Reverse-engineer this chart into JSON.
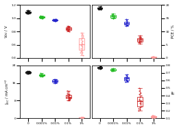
{
  "x_labels": [
    "0",
    "0.001%",
    "0.01%",
    "0.1%",
    "1%"
  ],
  "x_positions": [
    0,
    1,
    2,
    3,
    4
  ],
  "colors": [
    "#111111",
    "#22bb22",
    "#2222cc",
    "#cc2222",
    "#ff9999"
  ],
  "voc_data": [
    [
      1.07,
      1.08,
      1.09,
      1.1,
      1.11,
      1.12,
      1.08,
      1.09,
      1.1,
      1.11,
      1.09,
      1.1,
      1.08,
      1.09,
      1.1,
      1.11,
      1.08,
      1.09,
      1.1,
      1.07,
      1.08,
      1.09,
      1.1,
      1.11,
      1.12
    ],
    [
      1.0,
      1.01,
      1.02,
      1.03,
      1.04,
      1.02,
      1.03,
      1.01,
      1.02,
      1.03,
      1.01,
      1.02,
      1.03,
      1.0
    ],
    [
      0.95,
      0.96,
      0.97,
      0.98,
      0.99,
      0.97,
      0.98,
      0.96,
      0.97,
      0.98,
      0.96,
      0.97,
      0.95,
      0.96
    ],
    [
      0.8,
      0.82,
      0.84,
      0.86,
      0.88,
      0.83,
      0.85,
      0.87,
      0.82,
      0.84,
      0.86,
      0.81,
      0.83,
      0.85,
      0.87,
      0.82,
      0.84,
      0.86,
      0.81,
      0.83
    ],
    [
      0.44,
      0.48,
      0.52,
      0.56,
      0.6,
      0.64,
      0.68,
      0.72,
      0.76,
      0.5,
      0.54,
      0.58,
      0.62,
      0.66,
      0.7,
      0.74,
      0.46,
      0.5,
      0.54,
      0.58,
      0.62,
      0.66,
      0.7,
      0.74,
      0.78,
      0.48
    ]
  ],
  "voc_ylim": [
    0.4,
    1.2
  ],
  "voc_yticks": [
    0.4,
    0.6,
    0.8,
    1.0,
    1.2
  ],
  "voc_ylabel": "V$_{OC}$ / V",
  "pce_data": [
    [
      18.2,
      18.5,
      18.8,
      19.0,
      19.2,
      19.4,
      18.6,
      18.9,
      19.1,
      18.7,
      18.5,
      18.8,
      19.0,
      18.3,
      18.6,
      18.9,
      19.1,
      18.4,
      18.7,
      19.0
    ],
    [
      14.8,
      15.2,
      15.6,
      16.0,
      16.4,
      16.8,
      15.0,
      15.4,
      15.8,
      16.2,
      16.6,
      15.2,
      15.6,
      16.0
    ],
    [
      12.0,
      12.5,
      13.0,
      13.5,
      14.0,
      14.5,
      12.2,
      12.7,
      13.2,
      13.7,
      14.2,
      12.4,
      12.9,
      13.4
    ],
    [
      5.5,
      6.0,
      6.5,
      7.0,
      7.5,
      8.0,
      8.5,
      6.2,
      6.8,
      7.2,
      7.8,
      6.0,
      6.5,
      7.0,
      7.5,
      8.0,
      5.8,
      6.3
    ],
    [
      0.1,
      0.2,
      0.3,
      0.4,
      0.5,
      0.2,
      0.3,
      0.4,
      0.1,
      0.2,
      0.3,
      0.4,
      0.5,
      0.2,
      0.3,
      0.4
    ]
  ],
  "pce_ylim": [
    0,
    20
  ],
  "pce_yticks": [
    0,
    5,
    10,
    15,
    20
  ],
  "pce_ylabel": "PCE / %",
  "jsc_data": [
    [
      20.2,
      20.5,
      20.8,
      21.0,
      21.2,
      21.4,
      20.6,
      20.9,
      21.1,
      20.7,
      20.5,
      20.8,
      21.0,
      20.3,
      20.6,
      20.9,
      21.1,
      20.4,
      20.7,
      21.0,
      21.3
    ],
    [
      18.8,
      19.2,
      19.6,
      20.0,
      20.4,
      19.0,
      19.4,
      19.8,
      20.2,
      19.2,
      19.6,
      20.0,
      19.0,
      19.4
    ],
    [
      16.0,
      16.5,
      17.0,
      17.5,
      17.8,
      16.2,
      16.7,
      17.2,
      17.7,
      16.4,
      16.9,
      17.4,
      16.2,
      16.7
    ],
    [
      8.0,
      8.5,
      9.0,
      9.5,
      10.0,
      10.5,
      11.0,
      11.5,
      12.0,
      12.5,
      8.5,
      9.0,
      9.5,
      10.0,
      10.5,
      11.0,
      8.2,
      8.8,
      9.4,
      10.2
    ],
    [
      0.2,
      0.3,
      0.4,
      0.5,
      0.6,
      0.3,
      0.4,
      0.5,
      0.2,
      0.3,
      0.4,
      0.5,
      0.6,
      0.3,
      0.4,
      0.5
    ]
  ],
  "jsc_ylim": [
    0,
    24
  ],
  "jsc_yticks": [
    0,
    8,
    16,
    24
  ],
  "jsc_ylabel": "J$_{SC}$ / mA cm$^{-2}$",
  "ff_data": [
    [
      0.75,
      0.76,
      0.77,
      0.78,
      0.79,
      0.8,
      0.76,
      0.77,
      0.78,
      0.79,
      0.76,
      0.77,
      0.78,
      0.79,
      0.76,
      0.77,
      0.78
    ],
    [
      0.72,
      0.73,
      0.74,
      0.75,
      0.76,
      0.73,
      0.74,
      0.75,
      0.72,
      0.73,
      0.74,
      0.75,
      0.72,
      0.73
    ],
    [
      0.58,
      0.6,
      0.62,
      0.64,
      0.66,
      0.68,
      0.59,
      0.61,
      0.63,
      0.65,
      0.67,
      0.59,
      0.61,
      0.63
    ],
    [
      0.2,
      0.23,
      0.26,
      0.3,
      0.34,
      0.38,
      0.42,
      0.46,
      0.5,
      0.25,
      0.28,
      0.32,
      0.36,
      0.4,
      0.44,
      0.22,
      0.26,
      0.3,
      0.34,
      0.38
    ],
    [
      0.1,
      0.11,
      0.12,
      0.13,
      0.14,
      0.11,
      0.12,
      0.13,
      0.1,
      0.11,
      0.12,
      0.13,
      0.14,
      0.11,
      0.12,
      0.13
    ]
  ],
  "ff_ylim": [
    0.1,
    0.8
  ],
  "ff_yticks": [
    0.1,
    0.2,
    0.3,
    0.4,
    0.5,
    0.6,
    0.7,
    0.8
  ],
  "ff_ylabel": "FF",
  "background_color": "#ffffff",
  "box_width": 0.4,
  "jitter_scale": 0.1
}
